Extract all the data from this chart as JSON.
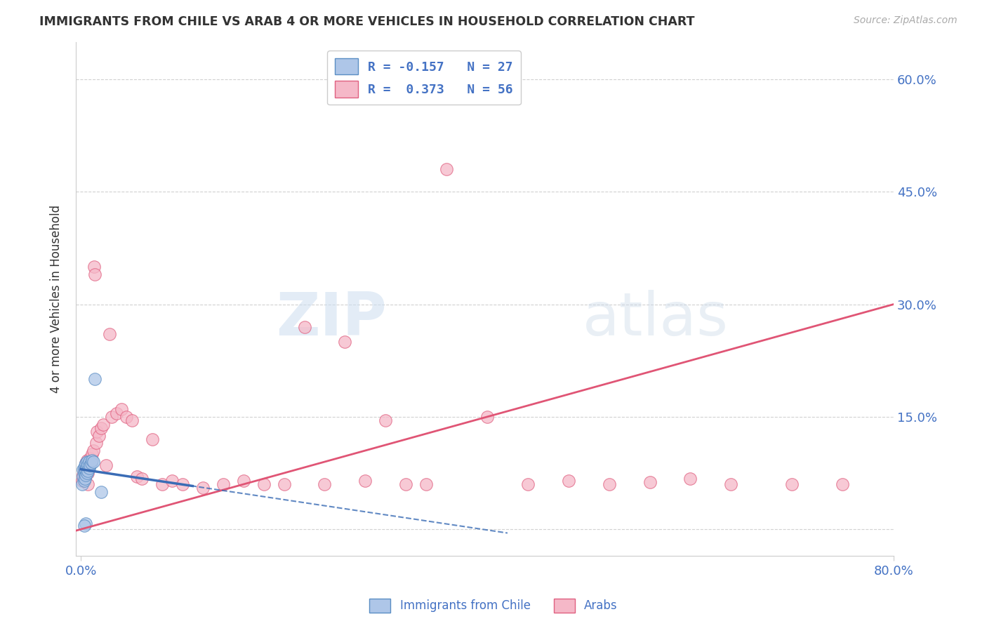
{
  "title": "IMMIGRANTS FROM CHILE VS ARAB 4 OR MORE VEHICLES IN HOUSEHOLD CORRELATION CHART",
  "source": "Source: ZipAtlas.com",
  "ylabel": "4 or more Vehicles in Household",
  "legend_label1": "Immigrants from Chile",
  "legend_label2": "Arabs",
  "chile_color": "#aec6e8",
  "arab_color": "#f5b8c8",
  "chile_edge_color": "#5b8ec4",
  "arab_edge_color": "#e06080",
  "chile_line_color": "#3a6cb5",
  "arab_line_color": "#e05575",
  "watermark_zip": "ZIP",
  "watermark_atlas": "atlas",
  "background_color": "#ffffff",
  "grid_color": "#cccccc",
  "axis_color": "#cccccc",
  "text_color": "#333333",
  "blue_label_color": "#4472c4",
  "legend1_text": "R = -0.157   N = 27",
  "legend2_text": "R =  0.373   N = 56",
  "chile_points_x": [
    0.001,
    0.002,
    0.002,
    0.003,
    0.003,
    0.003,
    0.004,
    0.004,
    0.004,
    0.005,
    0.005,
    0.005,
    0.006,
    0.006,
    0.006,
    0.007,
    0.007,
    0.008,
    0.008,
    0.009,
    0.01,
    0.011,
    0.012,
    0.014,
    0.02,
    0.005,
    0.003
  ],
  "chile_points_y": [
    0.06,
    0.07,
    0.08,
    0.065,
    0.075,
    0.082,
    0.068,
    0.078,
    0.085,
    0.072,
    0.08,
    0.088,
    0.075,
    0.083,
    0.09,
    0.078,
    0.086,
    0.082,
    0.09,
    0.085,
    0.088,
    0.092,
    0.09,
    0.2,
    0.05,
    0.008,
    0.005
  ],
  "arab_points_x": [
    0.001,
    0.002,
    0.003,
    0.004,
    0.004,
    0.005,
    0.006,
    0.007,
    0.007,
    0.008,
    0.009,
    0.01,
    0.011,
    0.012,
    0.013,
    0.014,
    0.015,
    0.016,
    0.018,
    0.02,
    0.022,
    0.025,
    0.028,
    0.03,
    0.035,
    0.04,
    0.045,
    0.05,
    0.055,
    0.06,
    0.07,
    0.08,
    0.09,
    0.1,
    0.12,
    0.14,
    0.16,
    0.18,
    0.2,
    0.22,
    0.24,
    0.26,
    0.28,
    0.3,
    0.32,
    0.34,
    0.36,
    0.4,
    0.44,
    0.48,
    0.52,
    0.56,
    0.6,
    0.64,
    0.7,
    0.75
  ],
  "arab_points_y": [
    0.065,
    0.072,
    0.078,
    0.082,
    0.068,
    0.088,
    0.092,
    0.075,
    0.06,
    0.085,
    0.095,
    0.09,
    0.1,
    0.105,
    0.35,
    0.34,
    0.115,
    0.13,
    0.125,
    0.135,
    0.14,
    0.085,
    0.26,
    0.15,
    0.155,
    0.16,
    0.15,
    0.145,
    0.07,
    0.068,
    0.12,
    0.06,
    0.065,
    0.06,
    0.055,
    0.06,
    0.065,
    0.06,
    0.06,
    0.27,
    0.06,
    0.25,
    0.065,
    0.145,
    0.06,
    0.06,
    0.48,
    0.15,
    0.06,
    0.065,
    0.06,
    0.063,
    0.068,
    0.06,
    0.06,
    0.06
  ],
  "xlim": [
    -0.005,
    0.8
  ],
  "ylim": [
    -0.035,
    0.65
  ],
  "ytick_positions": [
    0.0,
    0.15,
    0.3,
    0.45,
    0.6
  ],
  "ytick_labels": [
    "",
    "15.0%",
    "30.0%",
    "45.0%",
    "60.0%"
  ],
  "xtick_show": [
    0.0,
    0.8
  ],
  "xtick_labels": [
    "0.0%",
    "80.0%"
  ]
}
